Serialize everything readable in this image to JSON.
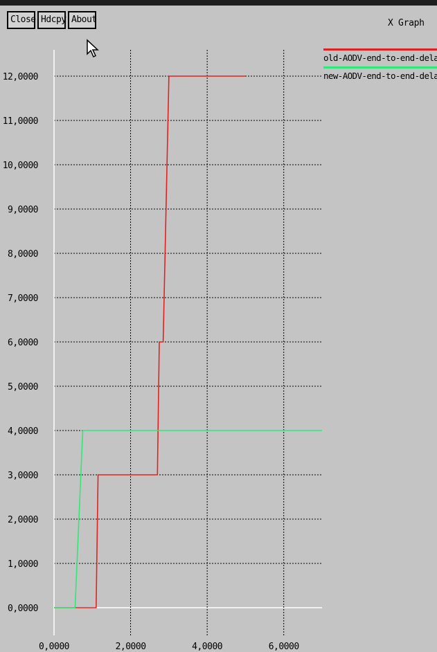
{
  "toolbar": {
    "close_label": "Close",
    "hdcpy_label": "Hdcpy",
    "about_label": "About"
  },
  "window_title": "X Graph",
  "chart_data": {
    "type": "line",
    "step": true,
    "xlim": [
      0,
      7
    ],
    "ylim": [
      0,
      12
    ],
    "grid": true,
    "legend_position": "top-right",
    "x_ticks": [
      "0.0000",
      "2.0000",
      "4.0000",
      "6.0000"
    ],
    "y_ticks": [
      "0.0000",
      "1.0000",
      "2.0000",
      "3.0000",
      "4.0000",
      "5.0000",
      "6.0000",
      "7.0000",
      "8.0000",
      "9.0000",
      "10.0000",
      "11.0000",
      "12.0000"
    ],
    "series": [
      {
        "name": "old-AODV-end-to-end-delay.",
        "color": "#e32020",
        "x": [
          0.0,
          1.1,
          1.15,
          2.7,
          2.75,
          2.85,
          3.0,
          5.0
        ],
        "y": [
          0,
          0,
          3,
          3,
          6,
          6,
          12,
          12
        ]
      },
      {
        "name": "new-AODV-end-to-end-delay.",
        "color": "#2ee878",
        "x": [
          0.0,
          0.55,
          0.75,
          7.0
        ],
        "y": [
          0,
          0,
          4,
          4
        ]
      }
    ]
  }
}
